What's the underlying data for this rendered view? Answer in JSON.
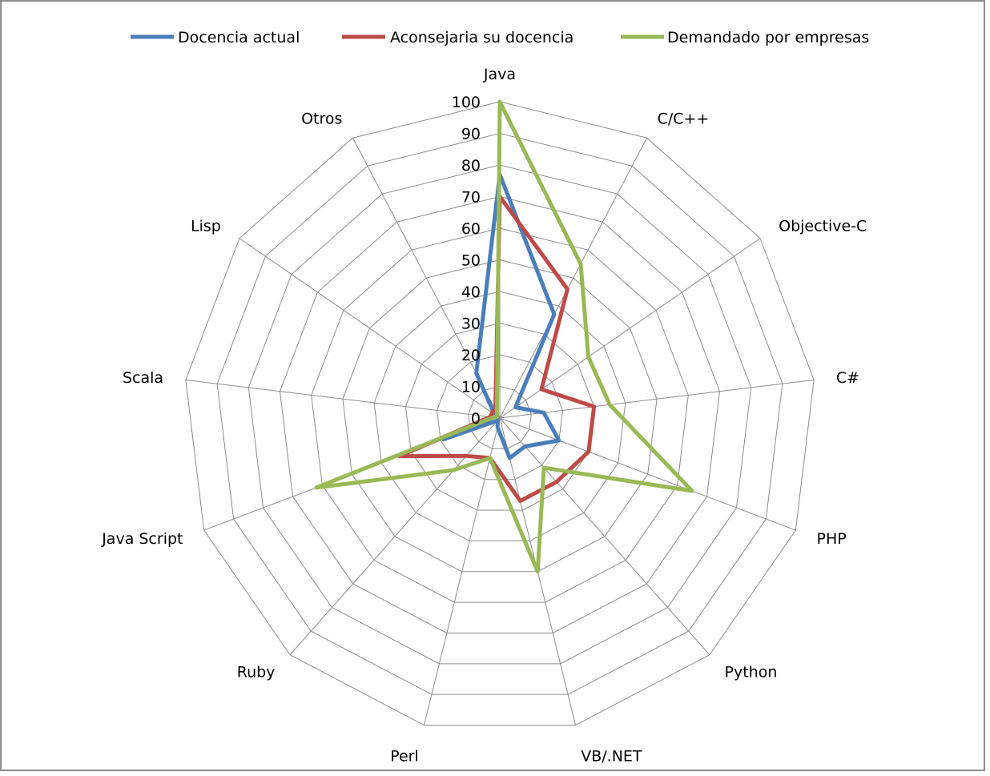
{
  "chart_data": {
    "type": "radar",
    "categories": [
      "Java",
      "C/C++",
      "Objective-C",
      "C#",
      "PHP",
      "Python",
      "VB/.NET",
      "Perl",
      "Ruby",
      "Java Script",
      "Scala",
      "Lisp",
      "Otros"
    ],
    "series": [
      {
        "name": "Docencia actual",
        "color": "#4a7ebb",
        "values": [
          77,
          37,
          6,
          14,
          20,
          12,
          13,
          3,
          1,
          19,
          2,
          2,
          16
        ]
      },
      {
        "name": "Aconsejaria su docencia",
        "color": "#be4b48",
        "values": [
          70,
          46,
          16,
          30,
          30,
          27,
          27,
          13,
          16,
          34,
          3,
          3,
          3
        ]
      },
      {
        "name": "Demandado por empresas",
        "color": "#98b954",
        "values": [
          100,
          55,
          34,
          35,
          65,
          21,
          50,
          13,
          22,
          62,
          2,
          1,
          2
        ]
      }
    ],
    "r_ticks": [
      "0",
      "10",
      "20",
      "30",
      "40",
      "50",
      "60",
      "70",
      "80",
      "90",
      "100"
    ],
    "r_range": [
      0,
      100
    ],
    "grid": true,
    "legend_position": "top"
  }
}
